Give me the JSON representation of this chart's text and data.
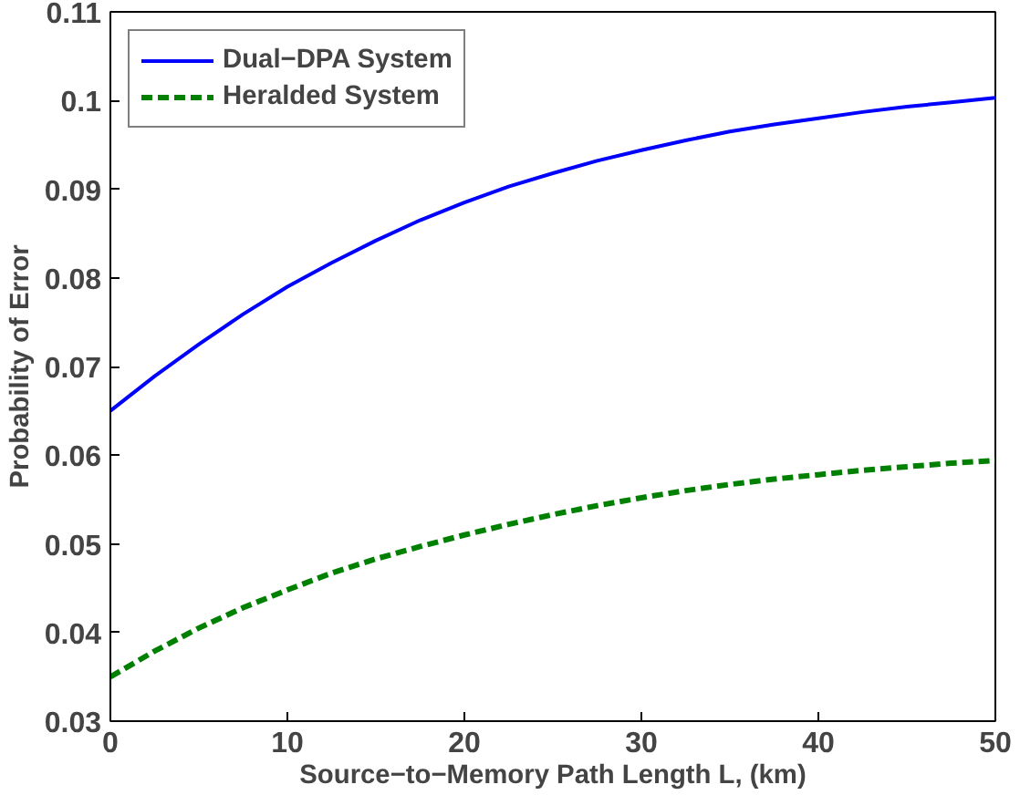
{
  "chart_data": {
    "type": "line",
    "xlabel": "Source−to−Memory Path Length L, (km)",
    "ylabel": "Probability of Error",
    "x": [
      0,
      2.5,
      5,
      7.5,
      10,
      12.5,
      15,
      17.5,
      20,
      22.5,
      25,
      27.5,
      30,
      32.5,
      35,
      37.5,
      40,
      42.5,
      45,
      47.5,
      50
    ],
    "series": [
      {
        "name": "Dual−DPA System",
        "color": "#0000ff",
        "line_style": "solid",
        "values": [
          0.065,
          0.0689,
          0.0725,
          0.0759,
          0.079,
          0.0817,
          0.0842,
          0.0865,
          0.0885,
          0.0903,
          0.0918,
          0.0932,
          0.0944,
          0.0955,
          0.0965,
          0.0973,
          0.098,
          0.0987,
          0.0993,
          0.0998,
          0.1003
        ]
      },
      {
        "name": "Heralded System",
        "color": "#008000",
        "line_style": "dashed",
        "values": [
          0.035,
          0.0379,
          0.0405,
          0.0428,
          0.0448,
          0.0467,
          0.0483,
          0.0497,
          0.051,
          0.0522,
          0.0533,
          0.0543,
          0.0552,
          0.056,
          0.0567,
          0.0573,
          0.0578,
          0.0583,
          0.0587,
          0.0591,
          0.0594
        ]
      }
    ],
    "xlim": [
      0,
      50
    ],
    "ylim": [
      0.03,
      0.11
    ],
    "xticks": [
      0,
      10,
      20,
      30,
      40,
      50
    ],
    "yticks": [
      0.03,
      0.04,
      0.05,
      0.06,
      0.07,
      0.08,
      0.09,
      0.1,
      0.11
    ],
    "grid": false,
    "legend": "top left"
  }
}
